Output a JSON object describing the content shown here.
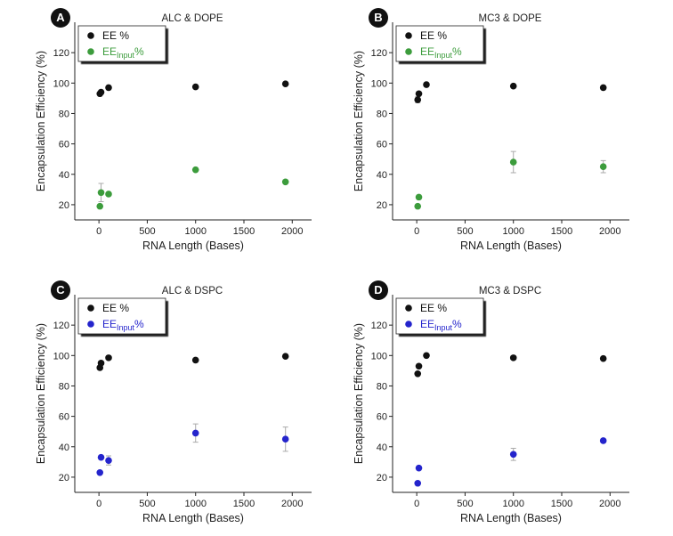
{
  "chart_data": [
    {
      "type": "scatter",
      "panel_label": "A",
      "title": "ALC & DOPE",
      "x_label": "RNA Length (Bases)",
      "y_label": "Encapsulation Efficiency (%)",
      "xlim": [
        -250,
        2200
      ],
      "ylim": [
        10,
        140
      ],
      "xticks": [
        0,
        500,
        1000,
        1500,
        2000
      ],
      "yticks": [
        20,
        40,
        60,
        80,
        100,
        120
      ],
      "x": [
        10,
        22,
        100,
        1000,
        1930
      ],
      "series": [
        {
          "name": "EE %",
          "color": "#111111",
          "values": [
            93,
            94,
            97,
            97.5,
            99.5
          ],
          "errors": [
            null,
            null,
            null,
            null,
            null
          ]
        },
        {
          "name": "EE",
          "subscript": "Input",
          "suffix": "%",
          "color": "#3c9c3c",
          "values": [
            19,
            28,
            27,
            43,
            35
          ],
          "errors": [
            null,
            6,
            null,
            null,
            null
          ]
        }
      ]
    },
    {
      "type": "scatter",
      "panel_label": "B",
      "title": "MC3 & DOPE",
      "x_label": "RNA Length (Bases)",
      "y_label": "Encapsulation Efficiency (%)",
      "xlim": [
        -250,
        2200
      ],
      "ylim": [
        10,
        140
      ],
      "xticks": [
        0,
        500,
        1000,
        1500,
        2000
      ],
      "yticks": [
        20,
        40,
        60,
        80,
        100,
        120
      ],
      "x": [
        10,
        22,
        100,
        1000,
        1930
      ],
      "series": [
        {
          "name": "EE %",
          "color": "#111111",
          "values": [
            89,
            93,
            99,
            98,
            97
          ],
          "errors": [
            2,
            null,
            null,
            null,
            null
          ]
        },
        {
          "name": "EE",
          "subscript": "Input",
          "suffix": "%",
          "color": "#3c9c3c",
          "values": [
            19,
            25,
            null,
            48,
            45
          ],
          "errors": [
            null,
            null,
            null,
            7,
            4
          ]
        }
      ]
    },
    {
      "type": "scatter",
      "panel_label": "C",
      "title": "ALC & DSPC",
      "x_label": "RNA Length (Bases)",
      "y_label": "Encapsulation Efficiency (%)",
      "xlim": [
        -250,
        2200
      ],
      "ylim": [
        10,
        140
      ],
      "xticks": [
        0,
        500,
        1000,
        1500,
        2000
      ],
      "yticks": [
        20,
        40,
        60,
        80,
        100,
        120
      ],
      "x": [
        10,
        22,
        100,
        1000,
        1930
      ],
      "series": [
        {
          "name": "EE %",
          "color": "#111111",
          "values": [
            92,
            95,
            98.5,
            97,
            99.5
          ],
          "errors": [
            null,
            null,
            null,
            null,
            null
          ]
        },
        {
          "name": "EE",
          "subscript": "Input",
          "suffix": "%",
          "color": "#2424cc",
          "values": [
            23,
            33,
            31,
            49,
            45
          ],
          "errors": [
            null,
            null,
            3,
            6,
            8
          ]
        }
      ]
    },
    {
      "type": "scatter",
      "panel_label": "D",
      "title": "MC3 & DSPC",
      "x_label": "RNA Length (Bases)",
      "y_label": "Encapsulation Efficiency (%)",
      "xlim": [
        -250,
        2200
      ],
      "ylim": [
        10,
        140
      ],
      "xticks": [
        0,
        500,
        1000,
        1500,
        2000
      ],
      "yticks": [
        20,
        40,
        60,
        80,
        100,
        120
      ],
      "x": [
        10,
        22,
        100,
        1000,
        1930
      ],
      "series": [
        {
          "name": "EE %",
          "color": "#111111",
          "values": [
            88,
            93,
            100,
            98.5,
            98
          ],
          "errors": [
            null,
            null,
            null,
            null,
            null
          ]
        },
        {
          "name": "EE",
          "subscript": "Input",
          "suffix": "%",
          "color": "#2424cc",
          "values": [
            16,
            26,
            null,
            35,
            44
          ],
          "errors": [
            null,
            null,
            null,
            4,
            null
          ]
        }
      ]
    }
  ]
}
